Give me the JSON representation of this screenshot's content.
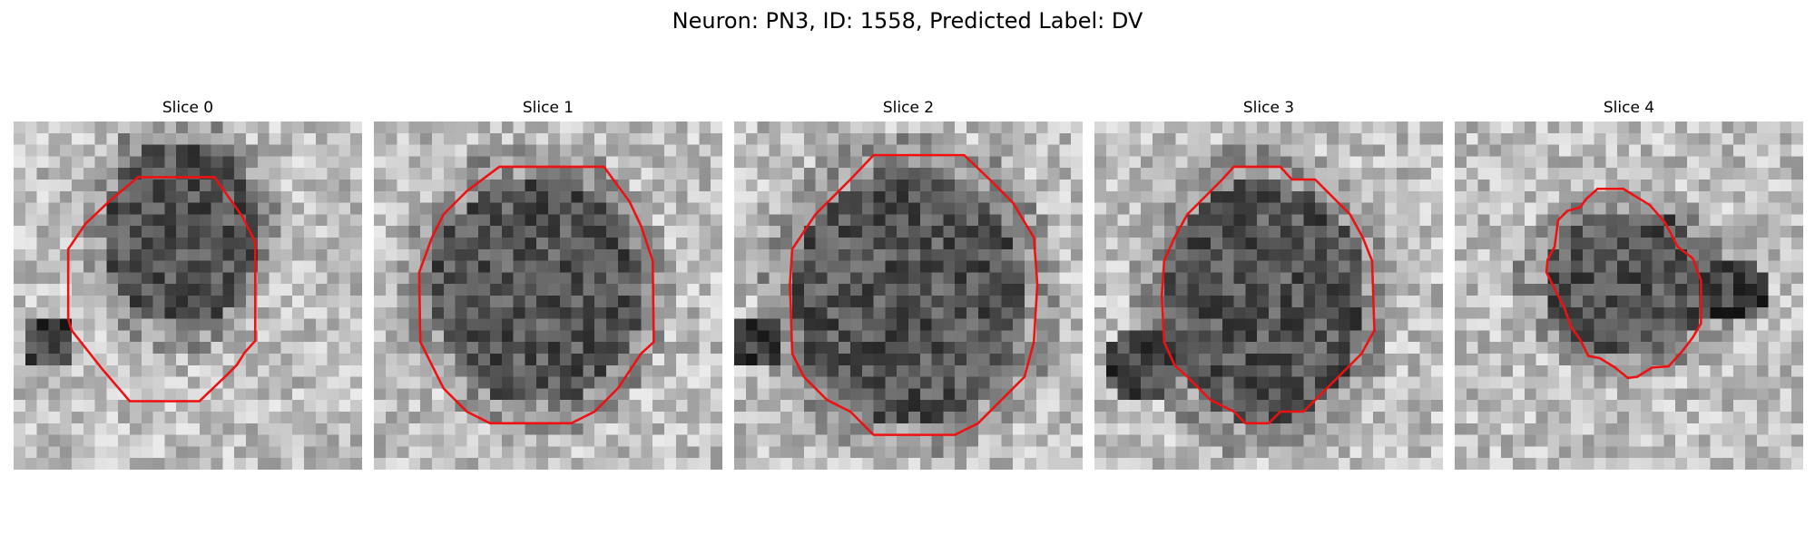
{
  "figure": {
    "title": "Neuron: PN3, ID: 1558, Predicted Label: DV"
  },
  "colors": {
    "contour": "#ee1111",
    "background": "#ffffff"
  },
  "panels": [
    {
      "title": "Slice 0",
      "content": "grayscale-noise-patch-with-dark-cell-body"
    },
    {
      "title": "Slice 1",
      "content": "grayscale-noise-patch-with-dark-cell-body"
    },
    {
      "title": "Slice 2",
      "content": "grayscale-noise-patch-with-dark-cell-body"
    },
    {
      "title": "Slice 3",
      "content": "grayscale-noise-patch-with-dark-cell-body"
    },
    {
      "title": "Slice 4",
      "content": "grayscale-noise-patch-with-dark-cell-body"
    }
  ]
}
